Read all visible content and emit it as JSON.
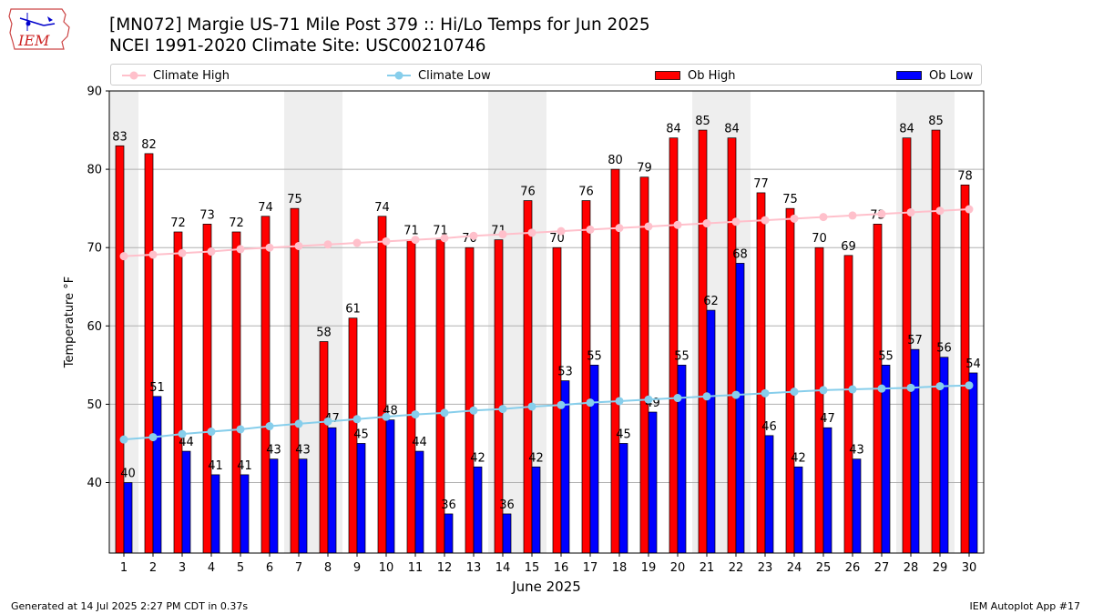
{
  "header": {
    "title_line1": "[MN072] Margie US-71 Mile Post 379 :: Hi/Lo Temps for Jun 2025",
    "title_line2": "NCEI 1991-2020 Climate Site: USC00210746",
    "logo_text": "IEM"
  },
  "legend": {
    "items": [
      {
        "label": "Climate High",
        "kind": "line",
        "color": "#ffc0cb"
      },
      {
        "label": "Climate Low",
        "kind": "line",
        "color": "#87ceeb"
      },
      {
        "label": "Ob High",
        "kind": "bar",
        "color": "#ff0000"
      },
      {
        "label": "Ob Low",
        "kind": "bar",
        "color": "#0000ff"
      }
    ]
  },
  "footer": {
    "left": "Generated at 14 Jul 2025 2:27 PM CDT in 0.37s",
    "right": "IEM Autoplot App #17"
  },
  "chart_data": {
    "type": "bar",
    "xlabel": "June 2025",
    "ylabel": "Temperature °F",
    "ylim": [
      31,
      90
    ],
    "yticks": [
      40,
      50,
      60,
      70,
      80,
      90
    ],
    "grid": true,
    "legend_position": "top",
    "weekend_shading": [
      [
        1,
        1
      ],
      [
        7,
        8
      ],
      [
        14,
        15
      ],
      [
        21,
        22
      ],
      [
        28,
        29
      ]
    ],
    "shade_color": "#eeeeee",
    "categories": [
      "1",
      "2",
      "3",
      "4",
      "5",
      "6",
      "7",
      "8",
      "9",
      "10",
      "11",
      "12",
      "13",
      "14",
      "15",
      "16",
      "17",
      "18",
      "19",
      "20",
      "21",
      "22",
      "23",
      "24",
      "25",
      "26",
      "27",
      "28",
      "29",
      "30"
    ],
    "series": [
      {
        "name": "Ob High",
        "type": "bar",
        "color": "#ff0000",
        "values": [
          83,
          82,
          72,
          73,
          72,
          74,
          75,
          58,
          61,
          74,
          71,
          71,
          70,
          71,
          76,
          70,
          76,
          80,
          79,
          84,
          85,
          84,
          77,
          75,
          70,
          69,
          73,
          84,
          85,
          78
        ]
      },
      {
        "name": "Ob Low",
        "type": "bar",
        "color": "#0000ff",
        "values": [
          40,
          51,
          44,
          41,
          41,
          43,
          43,
          47,
          45,
          48,
          44,
          36,
          42,
          36,
          42,
          53,
          55,
          45,
          49,
          55,
          62,
          68,
          46,
          42,
          47,
          43,
          55,
          57,
          56,
          54
        ]
      },
      {
        "name": "Climate High",
        "type": "line",
        "color": "#ffc0cb",
        "values": [
          68.9,
          69.1,
          69.3,
          69.5,
          69.8,
          70.0,
          70.2,
          70.4,
          70.6,
          70.8,
          71.0,
          71.2,
          71.5,
          71.7,
          71.9,
          72.1,
          72.3,
          72.5,
          72.7,
          72.9,
          73.1,
          73.3,
          73.5,
          73.7,
          73.9,
          74.1,
          74.3,
          74.5,
          74.7,
          74.9
        ]
      },
      {
        "name": "Climate Low",
        "type": "line",
        "color": "#87ceeb",
        "values": [
          45.5,
          45.8,
          46.2,
          46.5,
          46.8,
          47.2,
          47.5,
          47.8,
          48.1,
          48.4,
          48.7,
          48.9,
          49.2,
          49.4,
          49.7,
          49.9,
          50.2,
          50.4,
          50.6,
          50.8,
          51.0,
          51.2,
          51.4,
          51.6,
          51.8,
          51.9,
          52.0,
          52.1,
          52.3,
          52.4
        ]
      }
    ]
  }
}
